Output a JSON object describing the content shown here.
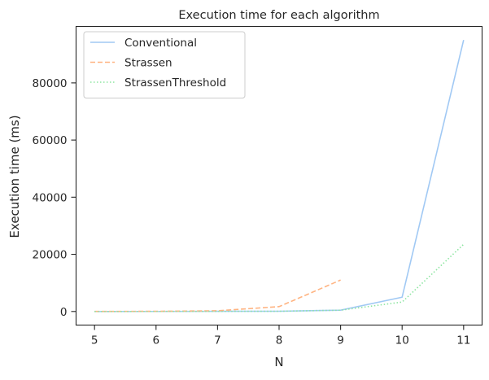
{
  "chart_data": {
    "type": "line",
    "title": "Execution time for each algorithm",
    "xlabel": "N",
    "ylabel": "Execution time (ms)",
    "xlim": [
      4.7,
      11.3
    ],
    "ylim": [
      -4760,
      99760
    ],
    "xticks": [
      5,
      6,
      7,
      8,
      9,
      10,
      11
    ],
    "xtick_labels": [
      "5",
      "6",
      "7",
      "8",
      "9",
      "10",
      "11"
    ],
    "yticks": [
      0,
      20000,
      40000,
      60000,
      80000
    ],
    "ytick_labels": [
      "0",
      "20000",
      "40000",
      "60000",
      "80000"
    ],
    "grid": false,
    "legend_position": "top-left",
    "series": [
      {
        "name": "Conventional",
        "color": "#a1c9f4",
        "dash": "solid",
        "x": [
          5,
          6,
          7,
          8,
          9,
          10,
          11
        ],
        "y": [
          2,
          10,
          50,
          80,
          450,
          5000,
          95000
        ]
      },
      {
        "name": "Strassen",
        "color": "#ffb482",
        "dash": "dashed",
        "x": [
          5,
          6,
          7,
          8,
          9
        ],
        "y": [
          30,
          60,
          250,
          1700,
          11000
        ]
      },
      {
        "name": "StrassenThreshold",
        "color": "#8de5a1",
        "dash": "dotted",
        "x": [
          5,
          6,
          7,
          8,
          9,
          10,
          11
        ],
        "y": [
          2,
          10,
          40,
          80,
          450,
          3300,
          23500
        ]
      }
    ]
  }
}
